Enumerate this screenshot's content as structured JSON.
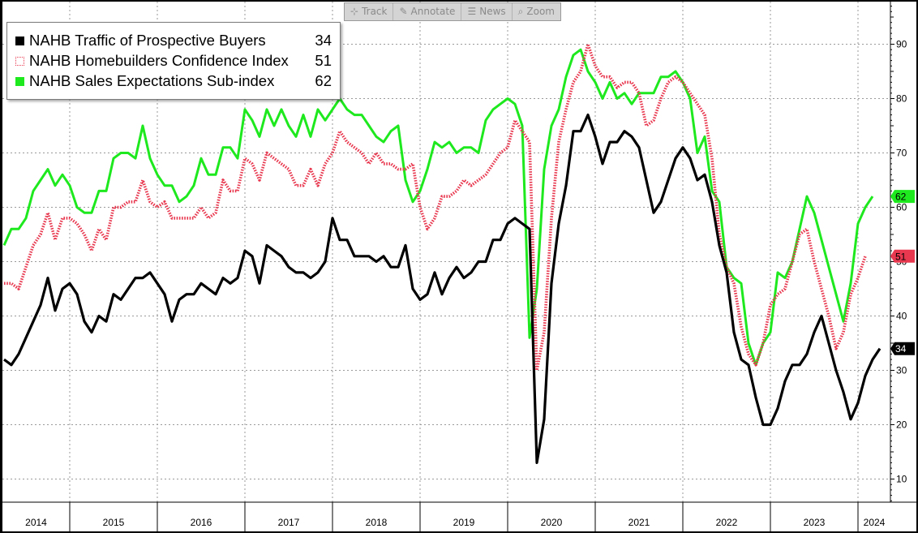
{
  "toolbar": {
    "buttons": [
      {
        "label": "Track",
        "icon": "crosshair-icon",
        "glyph": "⊹"
      },
      {
        "label": "Annotate",
        "icon": "pencil-icon",
        "glyph": "✎"
      },
      {
        "label": "News",
        "icon": "news-icon",
        "glyph": "☰"
      },
      {
        "label": "Zoom",
        "icon": "magnifier-icon",
        "glyph": "⌕"
      }
    ]
  },
  "colors": {
    "traffic": "#000000",
    "confidence": "#e8384f",
    "sales": "#1ee81e",
    "grid": "#9a9a9a"
  },
  "chart_data": {
    "type": "line",
    "x_axis": {
      "start_year": 2014,
      "labels": [
        "2014",
        "2015",
        "2016",
        "2017",
        "2018",
        "2019",
        "2020",
        "2021",
        "2022",
        "2023",
        "2024"
      ]
    },
    "y_axis": {
      "side": "right",
      "ylim": [
        5,
        100
      ],
      "ticks": [
        10,
        20,
        30,
        40,
        50,
        60,
        70,
        80,
        90
      ]
    },
    "grid": true,
    "legend_position": "top-left",
    "series": [
      {
        "name": "NAHB Traffic of Prospective Buyers",
        "label_value": "34",
        "style": "solid",
        "values": [
          32,
          31,
          33,
          36,
          39,
          42,
          47,
          41,
          45,
          46,
          44,
          39,
          37,
          40,
          39,
          44,
          43,
          45,
          47,
          47,
          48,
          46,
          44,
          39,
          43,
          44,
          44,
          46,
          45,
          44,
          47,
          46,
          47,
          52,
          51,
          46,
          53,
          52,
          51,
          49,
          48,
          48,
          47,
          48,
          50,
          58,
          54,
          54,
          51,
          51,
          51,
          50,
          51,
          49,
          49,
          53,
          45,
          43,
          44,
          48,
          44,
          47,
          49,
          47,
          48,
          50,
          50,
          54,
          54,
          57,
          58,
          57,
          56,
          13,
          21,
          46,
          57,
          64,
          74,
          74,
          77,
          73,
          68,
          72,
          72,
          74,
          73,
          71,
          65,
          59,
          61,
          65,
          69,
          71,
          69,
          65,
          66,
          61,
          53,
          48,
          37,
          32,
          31,
          25,
          20,
          20,
          23,
          28,
          31,
          31,
          33,
          37,
          40,
          35,
          30,
          26,
          21,
          24,
          29,
          32,
          34
        ]
      },
      {
        "name": "NAHB Homebuilders Confidence Index",
        "label_value": "51",
        "style": "dotted",
        "values": [
          46,
          46,
          45,
          49,
          53,
          55,
          59,
          54,
          58,
          58,
          57,
          55,
          52,
          56,
          54,
          60,
          60,
          61,
          61,
          65,
          61,
          60,
          61,
          58,
          58,
          58,
          58,
          60,
          58,
          59,
          65,
          63,
          63,
          69,
          68,
          65,
          70,
          69,
          68,
          67,
          64,
          64,
          67,
          64,
          68,
          70,
          74,
          72,
          71,
          70,
          68,
          70,
          68,
          68,
          67,
          67,
          68,
          60,
          56,
          58,
          62,
          62,
          63,
          65,
          64,
          65,
          66,
          68,
          70,
          71,
          76,
          74,
          72,
          30,
          37,
          58,
          72,
          78,
          83,
          85,
          90,
          86,
          84,
          84,
          82,
          83,
          83,
          81,
          75,
          76,
          80,
          83,
          84,
          83,
          81,
          79,
          77,
          69,
          55,
          49,
          46,
          38,
          33,
          31,
          35,
          42,
          44,
          45,
          50,
          55,
          56,
          50,
          45,
          40,
          34,
          37,
          44,
          47,
          51
        ]
      },
      {
        "name": "NAHB Sales Expectations Sub-index",
        "label_value": "62",
        "style": "solid",
        "values": [
          53,
          56,
          56,
          58,
          63,
          65,
          67,
          64,
          66,
          64,
          60,
          59,
          59,
          63,
          63,
          69,
          70,
          70,
          69,
          75,
          69,
          66,
          64,
          64,
          61,
          62,
          64,
          69,
          66,
          66,
          71,
          71,
          69,
          78,
          76,
          73,
          78,
          75,
          78,
          75,
          73,
          77,
          73,
          78,
          76,
          78,
          80,
          78,
          77,
          77,
          75,
          73,
          72,
          74,
          75,
          65,
          61,
          63,
          67,
          72,
          71,
          72,
          70,
          71,
          71,
          70,
          76,
          78,
          79,
          80,
          79,
          75,
          36,
          45,
          67,
          75,
          78,
          84,
          88,
          89,
          85,
          83,
          80,
          83,
          80,
          81,
          79,
          81,
          81,
          81,
          84,
          84,
          85,
          83,
          80,
          70,
          73,
          63,
          61,
          49,
          47,
          46,
          35,
          31,
          35,
          37,
          48,
          47,
          50,
          56,
          62,
          59,
          54,
          49,
          44,
          39,
          46,
          57,
          60,
          62
        ]
      }
    ]
  }
}
